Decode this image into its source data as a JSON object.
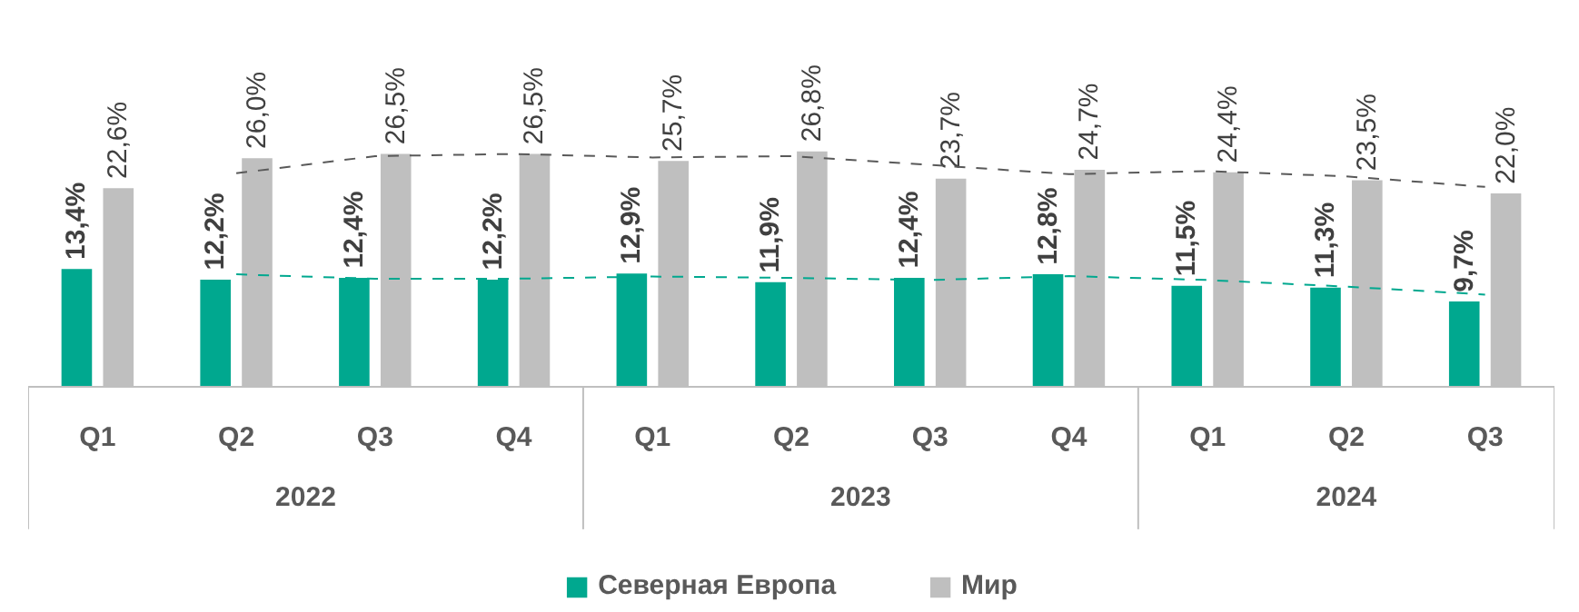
{
  "chart_data": {
    "type": "bar",
    "categories": [
      "Q1",
      "Q2",
      "Q3",
      "Q4",
      "Q1",
      "Q2",
      "Q3",
      "Q4",
      "Q1",
      "Q2",
      "Q3"
    ],
    "annotations": [
      "2022",
      "2023",
      "2024"
    ],
    "series": [
      {
        "name": "Северная Европа",
        "color": "#00a88f",
        "values": [
          13.4,
          12.2,
          12.4,
          12.2,
          12.9,
          11.9,
          12.4,
          12.8,
          11.5,
          11.3,
          9.7
        ],
        "value_labels": [
          "13,4%",
          "12,2%",
          "12,4%",
          "12,2%",
          "12,9%",
          "11,9%",
          "12,4%",
          "12,8%",
          "11,5%",
          "11,3%",
          "9,7%"
        ]
      },
      {
        "name": "Мир",
        "color": "#bfbfbf",
        "values": [
          22.6,
          26.0,
          26.5,
          26.5,
          25.7,
          26.8,
          23.7,
          24.7,
          24.4,
          23.5,
          22.0
        ],
        "value_labels": [
          "22,6%",
          "26,0%",
          "26,5%",
          "26,5%",
          "25,7%",
          "26,8%",
          "23,7%",
          "24,7%",
          "24,4%",
          "23,5%",
          "22,0%"
        ]
      },
      {
        "type": "line",
        "line_style": "dashed",
        "color": "#00a88f",
        "values": [
          null,
          12.8,
          12.3,
          12.3,
          12.55,
          12.4,
          12.15,
          12.6,
          12.15,
          11.4,
          10.5
        ]
      },
      {
        "type": "line",
        "line_style": "dashed",
        "color": "#595959",
        "values": [
          null,
          24.3,
          26.25,
          26.5,
          26.1,
          26.25,
          25.25,
          24.2,
          24.55,
          23.95,
          22.75
        ]
      }
    ],
    "legend": "bottom",
    "tick_labels": "x"
  }
}
